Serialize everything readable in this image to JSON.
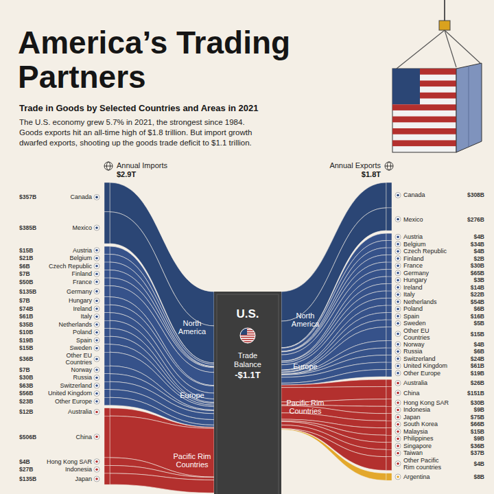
{
  "chart_data": {
    "type": "sankey",
    "title": "America’s Trading Partners",
    "subtitle": "Trade in Goods by Selected Countries and Areas in 2021",
    "description": [
      "The U.S. economy grew 5.7% in 2021, the strongest since 1984.",
      "Goods exports hit an all-time high of $1.8 trillion. But import growth",
      "dwarfed exports, shooting up the goods trade deficit to $1.1 trillion."
    ],
    "center": {
      "label": "U.S.",
      "balance_label": "Trade Balance",
      "balance": "-$1.1T"
    },
    "imports": {
      "label": "Annual Imports",
      "total_label": "$2.9T",
      "groups": [
        {
          "region": "North America",
          "color": "#2b4675",
          "countries": [
            "Canada",
            "Mexico"
          ],
          "values": [
            357,
            385
          ],
          "value_labels": [
            "$357B",
            "$385B"
          ]
        },
        {
          "region": "Europe",
          "color": "#36528a",
          "countries": [
            "Austria",
            "Belgium",
            "Czech Republic",
            "Finland",
            "France",
            "Germany",
            "Hungary",
            "Ireland",
            "Italy",
            "Netherlands",
            "Poland",
            "Spain",
            "Sweden",
            "Other EU Countries",
            "Norway",
            "Russia",
            "Switzerland",
            "United Kingdom",
            "Other Europe"
          ],
          "values": [
            15,
            21,
            6,
            7,
            50,
            135,
            7,
            74,
            61,
            35,
            10,
            19,
            15,
            36,
            7,
            30,
            63,
            56,
            23
          ],
          "value_labels": [
            "$15B",
            "$21B",
            "$6B",
            "$7B",
            "$50B",
            "$135B",
            "$7B",
            "$74B",
            "$61B",
            "$35B",
            "$10B",
            "$19B",
            "$15B",
            "$36B",
            "$7B",
            "$30B",
            "$63B",
            "$56B",
            "$23B"
          ]
        },
        {
          "region": "Pacific Rim Countries",
          "color": "#b3302e",
          "countries": [
            "Australia",
            "China",
            "Hong Kong SAR",
            "Indonesia",
            "Japan"
          ],
          "values": [
            12,
            506,
            4,
            27,
            135
          ],
          "value_labels": [
            "$12B",
            "$506B",
            "$4B",
            "$27B",
            "$135B"
          ]
        }
      ]
    },
    "exports": {
      "label": "Annual Exports",
      "total_label": "$1.8T",
      "groups": [
        {
          "region": "North America",
          "color": "#2b4675",
          "countries": [
            "Canada",
            "Mexico"
          ],
          "values": [
            308,
            276
          ],
          "value_labels": [
            "$308B",
            "$276B"
          ]
        },
        {
          "region": "Europe",
          "color": "#36528a",
          "countries": [
            "Austria",
            "Belgium",
            "Czech Republic",
            "Finland",
            "France",
            "Germany",
            "Hungary",
            "Ireland",
            "Italy",
            "Netherlands",
            "Poland",
            "Spain",
            "Sweden",
            "Other EU Countries",
            "Norway",
            "Russia",
            "Switzerland",
            "United Kingdom",
            "Other Europe"
          ],
          "values": [
            4,
            34,
            4,
            2,
            30,
            65,
            3,
            14,
            22,
            54,
            6,
            16,
            5,
            15,
            4,
            6,
            24,
            61,
            19
          ],
          "value_labels": [
            "$4B",
            "$34B",
            "$4B",
            "$2B",
            "$30B",
            "$65B",
            "$3B",
            "$14B",
            "$22B",
            "$54B",
            "$6B",
            "$16B",
            "$5B",
            "$15B",
            "$4B",
            "$6B",
            "$24B",
            "$61B",
            "$19B"
          ]
        },
        {
          "region": "Pacific Rim Countries",
          "color": "#b3302e",
          "countries": [
            "Australia",
            "China",
            "Hong Kong SAR",
            "Indonesia",
            "Japan",
            "South Korea",
            "Malaysia",
            "Philippines",
            "Singapore",
            "Taiwan",
            "Other Pacific Rim countries"
          ],
          "values": [
            26,
            151,
            30,
            9,
            75,
            66,
            15,
            9,
            36,
            37,
            4
          ],
          "value_labels": [
            "$26B",
            "$151B",
            "$30B",
            "$9B",
            "$75B",
            "$66B",
            "$15B",
            "$9B",
            "$36B",
            "$37B",
            "$4B"
          ]
        },
        {
          "region": null,
          "color": "#e3a82c",
          "countries": [
            "Argentina"
          ],
          "values": [
            8
          ],
          "value_labels": [
            "$8B"
          ]
        }
      ]
    }
  }
}
